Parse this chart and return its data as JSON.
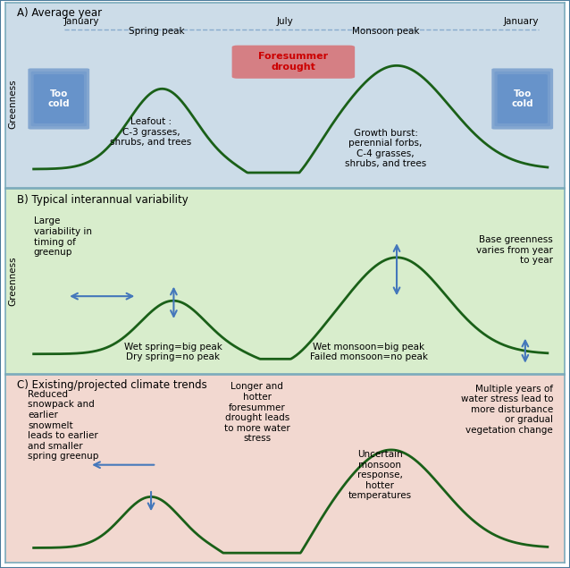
{
  "panel_A_bg": "#ccdce8",
  "panel_B_bg": "#d8edcc",
  "panel_C_bg": "#f2d8d0",
  "outer_border": "#4a7a9b",
  "curve_color": "#1a6018",
  "curve_lw": 2.0,
  "arrow_color": "#4477bb",
  "title_A": "A) Average year",
  "title_B": "B) Typical interannual variability",
  "title_C": "C) Existing/projected climate trends",
  "label_Jan1": "January",
  "label_Jul": "July",
  "label_Jan2": "January",
  "label_spring_peak": "Spring peak",
  "label_monsoon_peak": "Monsoon peak",
  "label_foresummer": "Foresummer\ndrought",
  "label_too_cold_L": "Too\ncold",
  "label_too_cold_R": "Too\ncold",
  "label_leafout": "Leafout :\nC-3 grasses,\nshrubs, and trees",
  "label_growth": "Growth burst:\nperennial forbs,\nC-4 grasses,\nshrubs, and trees",
  "label_greenness": "Greenness",
  "label_B_large": "Large\nvariability in\ntiming of\ngreenup",
  "label_B_wet_spring": "Wet spring=big peak\nDry spring=no peak",
  "label_B_wet_monsoon": "Wet monsoon=big peak\nFailed monsoon=no peak",
  "label_B_base": "Base greenness\nvaries from year\nto year",
  "label_C_snowpack": "Reduced\nsnowpack and\nearlier\nsnowmelt\nleads to earlier\nand smaller\nspring greenup",
  "label_C_longer": "Longer and\nhotter\nforesummer\ndrought leads\nto more water\nstress",
  "label_C_uncertain": "Uncertain\nmonsoon\nresponse,\nhotter\ntemperatures",
  "label_C_multiple": "Multiple years of\nwater stress lead to\nmore disturbance\nor gradual\nvegetation change"
}
